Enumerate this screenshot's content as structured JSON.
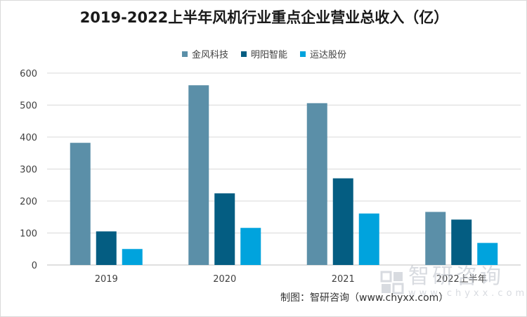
{
  "chart_data": {
    "type": "bar",
    "title": "2019-2022上半年风机行业重点企业营业总收入（亿）",
    "categories": [
      "2019",
      "2020",
      "2021",
      "2022上半年"
    ],
    "series": [
      {
        "name": "金风科技",
        "values": [
          382,
          562,
          506,
          166
        ],
        "color": "#5b8fa8"
      },
      {
        "name": "明阳智能",
        "values": [
          105,
          224,
          271,
          142
        ],
        "color": "#045d82"
      },
      {
        "name": "运达股份",
        "values": [
          50,
          116,
          161,
          69
        ],
        "color": "#00a3dd"
      }
    ],
    "yticks": [
      "0",
      "100",
      "200",
      "300",
      "400",
      "500",
      "600"
    ],
    "ylim": [
      0,
      600
    ],
    "grid": true,
    "legend_position": "top"
  },
  "credit": "制图：智研咨询（www.chyxx.com）",
  "watermark": {
    "name": "智研咨询",
    "url": "www.chyxx.com"
  }
}
